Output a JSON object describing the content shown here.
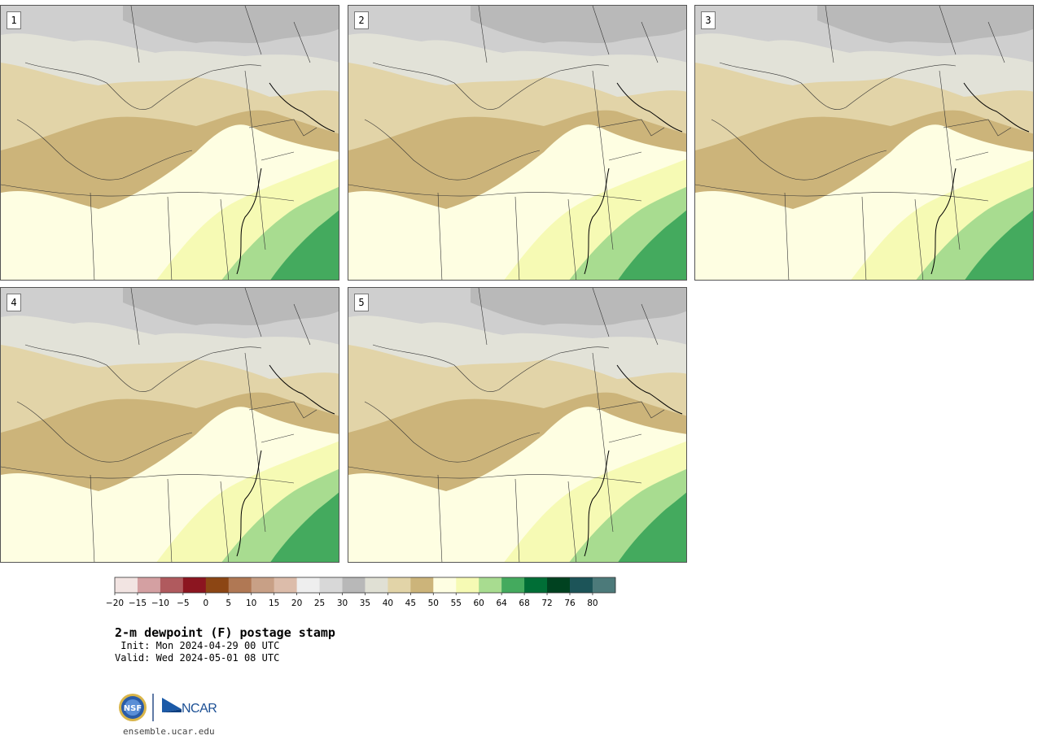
{
  "panels": [
    {
      "label": "1"
    },
    {
      "label": "2"
    },
    {
      "label": "3"
    },
    {
      "label": "4"
    },
    {
      "label": "5"
    }
  ],
  "legend": {
    "ticks": [
      "−20",
      "−15",
      "−10",
      "−5",
      "0",
      "5",
      "10",
      "15",
      "20",
      "25",
      "30",
      "35",
      "40",
      "45",
      "50",
      "55",
      "60",
      "64",
      "68",
      "72",
      "76",
      "80"
    ],
    "colors": [
      "#f2e4e2",
      "#d4a0a2",
      "#b05a5e",
      "#8c1520",
      "#8c4614",
      "#b07854",
      "#c8a086",
      "#dcbcaa",
      "#eeeeee",
      "#d8d8d8",
      "#b8b8b8",
      "#e0e0d4",
      "#e2d4a8",
      "#ccb47a",
      "#fefee2",
      "#f6fab4",
      "#a8dc90",
      "#44aa5e",
      "#006e36",
      "#004220",
      "#1c5458",
      "#4c7a7a"
    ]
  },
  "header": {
    "title": "2-m dewpoint (F) postage stamp",
    "init": " Init: Mon 2024-04-29 00 UTC",
    "valid": "Valid: Wed 2024-05-01 08 UTC"
  },
  "footer": {
    "nsf_logo": "NSF",
    "ncar_logo": "NCAR",
    "site": "ensemble.ucar.edu"
  }
}
